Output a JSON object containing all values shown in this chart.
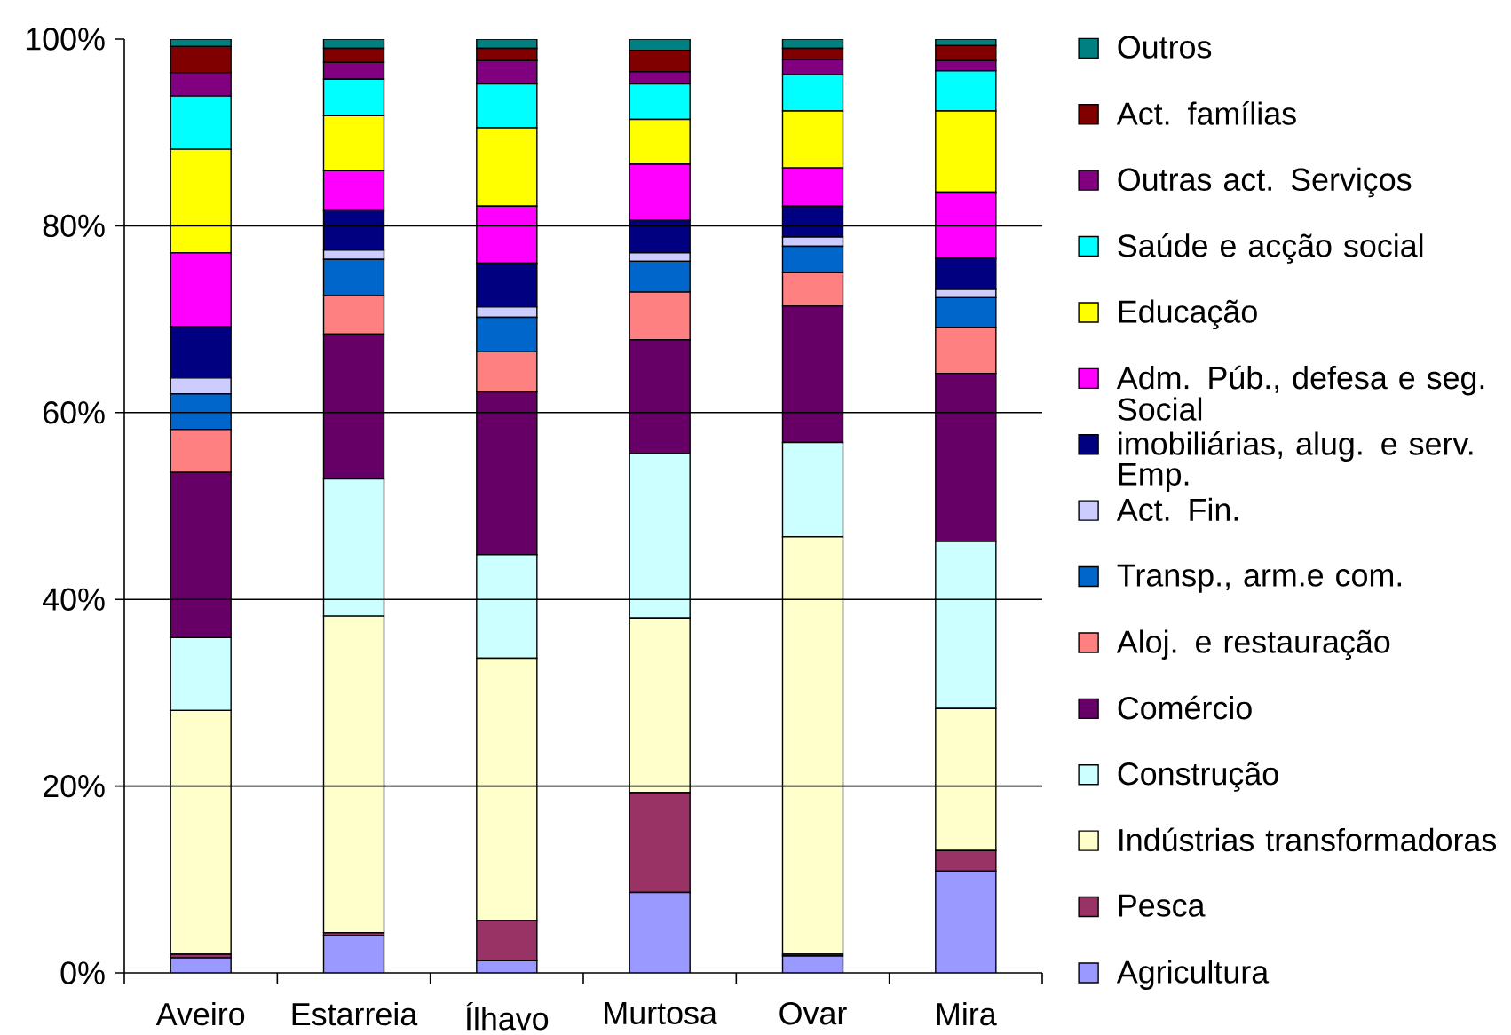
{
  "chart_data": {
    "type": "bar",
    "stacked": true,
    "categories": [
      "Aveiro",
      "Estarreia",
      "Ílhavo",
      "Murtosa",
      "Ovar",
      "Mira"
    ],
    "series": [
      {
        "name": "Agricultura",
        "color": "#9999ff",
        "values": [
          1.6,
          4.0,
          1.3,
          8.6,
          1.8,
          10.9
        ]
      },
      {
        "name": "Pesca",
        "color": "#993366",
        "values": [
          0.4,
          0.3,
          4.3,
          10.7,
          0.2,
          2.2
        ]
      },
      {
        "name": "Indústrias transformadoras",
        "color": "#ffffcc",
        "values": [
          26.1,
          33.9,
          28.1,
          18.7,
          44.7,
          15.2
        ]
      },
      {
        "name": "Construção",
        "color": "#ccffff",
        "values": [
          7.8,
          14.7,
          11.1,
          17.6,
          10.1,
          17.9
        ]
      },
      {
        "name": "Comércio",
        "color": "#660066",
        "values": [
          17.7,
          15.5,
          17.4,
          12.2,
          14.6,
          18.0
        ]
      },
      {
        "name": "Aloj. e restauração",
        "color": "#ff8080",
        "values": [
          4.6,
          4.1,
          4.3,
          5.1,
          3.6,
          4.9
        ]
      },
      {
        "name": "Transp., arm.e com.",
        "color": "#0066cc",
        "values": [
          3.8,
          3.9,
          3.7,
          3.3,
          2.8,
          3.2
        ]
      },
      {
        "name": "Act. Fin.",
        "color": "#ccccff",
        "values": [
          1.7,
          1.0,
          1.1,
          0.9,
          1.0,
          0.9
        ]
      },
      {
        "name": "imobiliárias, alug. e serv. Emp.",
        "color": "#000080",
        "values": [
          5.5,
          4.2,
          4.7,
          3.5,
          3.3,
          3.3
        ]
      },
      {
        "name": "Adm. Púb., defesa e seg. Social",
        "color": "#ff00ff",
        "values": [
          7.9,
          4.3,
          6.1,
          6.0,
          4.1,
          7.1
        ]
      },
      {
        "name": "Educação",
        "color": "#ffff00",
        "values": [
          11.1,
          5.9,
          8.4,
          4.8,
          6.1,
          8.7
        ]
      },
      {
        "name": "Saúde e acção social",
        "color": "#00ffff",
        "values": [
          5.7,
          3.9,
          4.7,
          3.8,
          3.9,
          4.3
        ]
      },
      {
        "name": "Outras act. Serviços",
        "color": "#800080",
        "values": [
          2.5,
          1.8,
          2.5,
          1.3,
          1.6,
          1.1
        ]
      },
      {
        "name": "Act. famílias",
        "color": "#800000",
        "values": [
          2.8,
          1.5,
          1.3,
          2.3,
          1.2,
          1.6
        ]
      },
      {
        "name": "Outros",
        "color": "#008080",
        "values": [
          0.8,
          1.0,
          1.0,
          1.2,
          1.0,
          0.7
        ]
      }
    ],
    "ylim": [
      0,
      100
    ],
    "yticks": [
      {
        "value": 0,
        "label": "0%"
      },
      {
        "value": 20,
        "label": "20%"
      },
      {
        "value": 40,
        "label": "40%"
      },
      {
        "value": 60,
        "label": "60%"
      },
      {
        "value": 80,
        "label": "80%"
      },
      {
        "value": 100,
        "label": "100%"
      }
    ],
    "grid": "y",
    "legend": "right"
  }
}
